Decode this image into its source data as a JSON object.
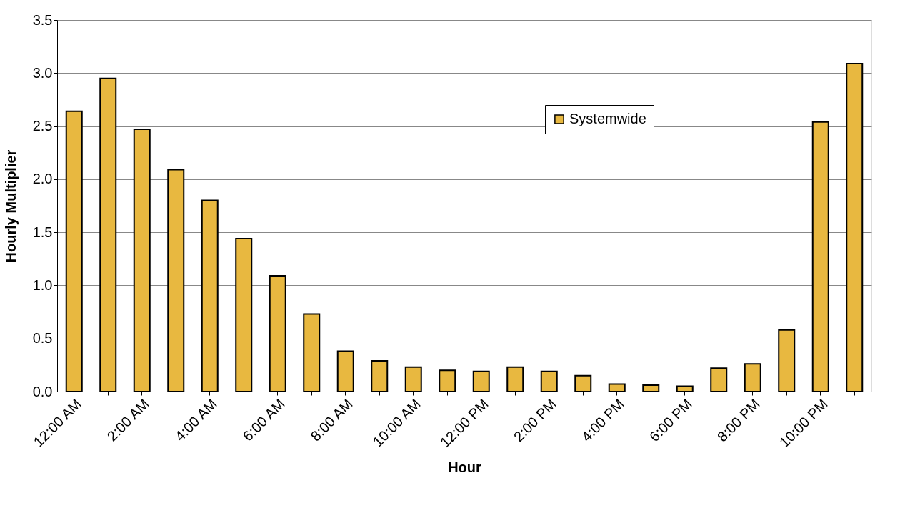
{
  "chart_data": {
    "type": "bar",
    "xlabel": "Hour",
    "ylabel": "Hourly Multiplier",
    "categories": [
      "12:00 AM",
      null,
      "2:00 AM",
      null,
      "4:00 AM",
      null,
      "6:00 AM",
      null,
      "8:00 AM",
      null,
      "10:00 AM",
      null,
      "12:00 PM",
      null,
      "2:00 PM",
      null,
      "4:00 PM",
      null,
      "6:00 PM",
      null,
      "8:00 PM",
      null,
      "10:00 PM",
      null
    ],
    "series": [
      {
        "name": "Systemwide",
        "color": "#e8b840",
        "values": [
          2.64,
          2.95,
          2.47,
          2.09,
          1.8,
          1.44,
          1.09,
          0.73,
          0.38,
          0.29,
          0.23,
          0.2,
          0.19,
          0.23,
          0.19,
          0.15,
          0.07,
          0.06,
          0.05,
          0.22,
          0.26,
          0.58,
          2.54,
          3.09
        ]
      }
    ],
    "ylim": [
      0,
      3.5
    ],
    "yticks": [
      {
        "value": 0,
        "label": "0.0"
      },
      0.5,
      {
        "value": 1,
        "label": "1.0"
      },
      1.5,
      {
        "value": 2,
        "label": "2.0"
      },
      2.5,
      {
        "value": 3,
        "label": "3.0"
      },
      3.5
    ],
    "grid": "y",
    "legend": "top right"
  }
}
